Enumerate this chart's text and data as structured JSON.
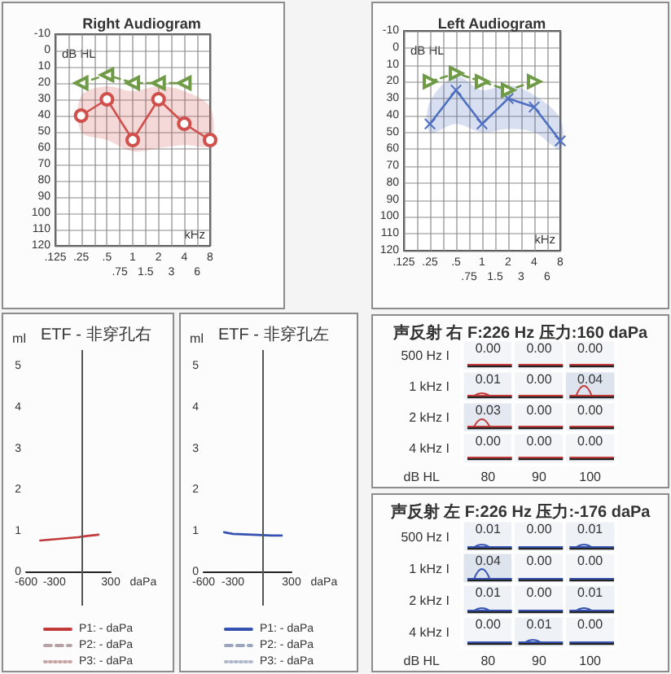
{
  "chart_data": [
    {
      "type": "line",
      "title": "Right Audiogram",
      "xlabel": "kHz",
      "ylabel": "dB HL",
      "categories": [
        ".125",
        null,
        ".25",
        null,
        ".5",
        ".75",
        "1",
        "1.5",
        "2",
        "3",
        "4",
        "6",
        "8"
      ],
      "ylim": [
        120,
        -10
      ],
      "yticks": [
        -10,
        0,
        10,
        20,
        30,
        40,
        50,
        60,
        70,
        80,
        90,
        100,
        110,
        120
      ],
      "grid": true,
      "series": [
        {
          "color": "#d0504c",
          "marker": "circle",
          "line_style": "solid",
          "values": [
            null,
            null,
            40,
            null,
            30,
            null,
            55,
            null,
            30,
            null,
            45,
            null,
            55
          ],
          "lower": [
            null,
            null,
            28,
            null,
            22,
            null,
            25,
            null,
            22,
            null,
            25,
            null,
            35
          ],
          "upper": [
            null,
            null,
            50,
            null,
            55,
            null,
            62,
            null,
            60,
            null,
            58,
            null,
            58
          ]
        },
        {
          "color": "#6f9a46",
          "marker": "triangle",
          "line_style": "dashed",
          "values": [
            null,
            null,
            20,
            null,
            15,
            null,
            20,
            null,
            20,
            null,
            20,
            null,
            null
          ]
        }
      ]
    },
    {
      "type": "line",
      "title": "Left Audiogram",
      "xlabel": "kHz",
      "ylabel": "dB HL",
      "categories": [
        ".125",
        null,
        ".25",
        null,
        ".5",
        ".75",
        "1",
        "1.5",
        "2",
        "3",
        "4",
        "6",
        "8"
      ],
      "ylim": [
        120,
        -10
      ],
      "yticks": [
        -10,
        0,
        10,
        20,
        30,
        40,
        50,
        60,
        70,
        80,
        90,
        100,
        110,
        120
      ],
      "grid": true,
      "series": [
        {
          "color": "#4f6fc0",
          "marker": "cross",
          "line_style": "solid",
          "values": [
            null,
            null,
            45,
            null,
            25,
            null,
            45,
            null,
            30,
            null,
            35,
            null,
            55
          ],
          "lower": [
            null,
            null,
            32,
            null,
            17,
            null,
            25,
            null,
            22,
            null,
            28,
            null,
            42
          ],
          "upper": [
            null,
            null,
            50,
            null,
            45,
            null,
            50,
            null,
            48,
            null,
            50,
            null,
            60
          ]
        },
        {
          "color": "#6f9a46",
          "marker": "triangle",
          "line_style": "dashed",
          "values": [
            null,
            null,
            20,
            null,
            15,
            null,
            20,
            null,
            25,
            null,
            20,
            null,
            null
          ]
        }
      ]
    },
    {
      "type": "line",
      "title": "ETF - 非穿孔右",
      "xlabel": "daPa",
      "ylabel": "ml",
      "xlim": [
        -600,
        300
      ],
      "xticks": [
        -600,
        -300,
        300
      ],
      "ylim": [
        -0.8,
        5.4
      ],
      "yticks": [
        0,
        1,
        2,
        3,
        4,
        5
      ],
      "marker": "none",
      "legend": "bottom",
      "ref_lines": [
        {
          "axis": "x",
          "value": 0,
          "color": "#555555"
        }
      ],
      "series": [
        {
          "name": "P1: - daPa",
          "color": "#c23a3a",
          "line_style": "solid",
          "x": [
            -450,
            -350,
            -250,
            -150,
            -50,
            50,
            170
          ],
          "values": [
            0.78,
            0.8,
            0.82,
            0.84,
            0.86,
            0.89,
            0.92
          ]
        },
        {
          "name": "P2: - daPa",
          "color": "#b7a3a3",
          "line_style": "dashed"
        },
        {
          "name": "P3: - daPa",
          "color": "#c8a6a6",
          "line_style": "dotted"
        }
      ]
    },
    {
      "type": "line",
      "title": "ETF - 非穿孔左",
      "xlabel": "daPa",
      "ylabel": "ml",
      "xlim": [
        -600,
        300
      ],
      "xticks": [
        -600,
        -300,
        300
      ],
      "ylim": [
        -0.8,
        5.4
      ],
      "yticks": [
        0,
        1,
        2,
        3,
        4,
        5
      ],
      "marker": "none",
      "legend": "bottom",
      "ref_lines": [
        {
          "axis": "x",
          "value": 0,
          "color": "#555555"
        }
      ],
      "series": [
        {
          "name": "P1: - daPa",
          "color": "#3552b0",
          "line_style": "solid",
          "x": [
            -390,
            -300,
            -200,
            -100,
            0,
            100,
            200
          ],
          "values": [
            0.98,
            0.94,
            0.93,
            0.92,
            0.91,
            0.9,
            0.9
          ]
        },
        {
          "name": "P2: - daPa",
          "color": "#9aa6c0",
          "line_style": "dashed"
        },
        {
          "name": "P3: - daPa",
          "color": "#b0b8cc",
          "line_style": "dotted"
        }
      ]
    },
    {
      "type": "heatmap",
      "title": "声反射 右 F:226 Hz 压力:160 daPa",
      "xlabel": "dB HL",
      "categories": [
        "80",
        "90",
        "100"
      ],
      "y_categories": [
        "500 Hz I",
        "1 kHz I",
        "2 kHz I",
        "4 kHz I"
      ],
      "cells": [
        [
          0,
          0,
          0
        ],
        [
          0.01,
          0,
          0.04
        ],
        [
          0.03,
          0,
          0
        ],
        [
          0,
          0,
          0
        ]
      ],
      "cell_labels": [
        [
          "0.00",
          "0.00",
          "0.00"
        ],
        [
          "0.01",
          "0.00",
          "0.04"
        ],
        [
          "0.03",
          "0.00",
          "0.00"
        ],
        [
          "0.00",
          "0.00",
          "0.00"
        ]
      ]
    },
    {
      "type": "heatmap",
      "title": "声反射 左 F:226 Hz 压力:-176 daPa",
      "xlabel": "dB HL",
      "categories": [
        "80",
        "90",
        "100"
      ],
      "y_categories": [
        "500 Hz I",
        "1 kHz I",
        "2 kHz I",
        "4 kHz I"
      ],
      "cells": [
        [
          0.01,
          0,
          0.01
        ],
        [
          0.04,
          0,
          0
        ],
        [
          0.01,
          0,
          0.01
        ],
        [
          0,
          0.01,
          0
        ]
      ],
      "cell_labels": [
        [
          "0.01",
          "0.00",
          "0.01"
        ],
        [
          "0.04",
          "0.00",
          "0.00"
        ],
        [
          "0.01",
          "0.00",
          "0.01"
        ],
        [
          "0.00",
          "0.01",
          "0.00"
        ]
      ]
    }
  ]
}
